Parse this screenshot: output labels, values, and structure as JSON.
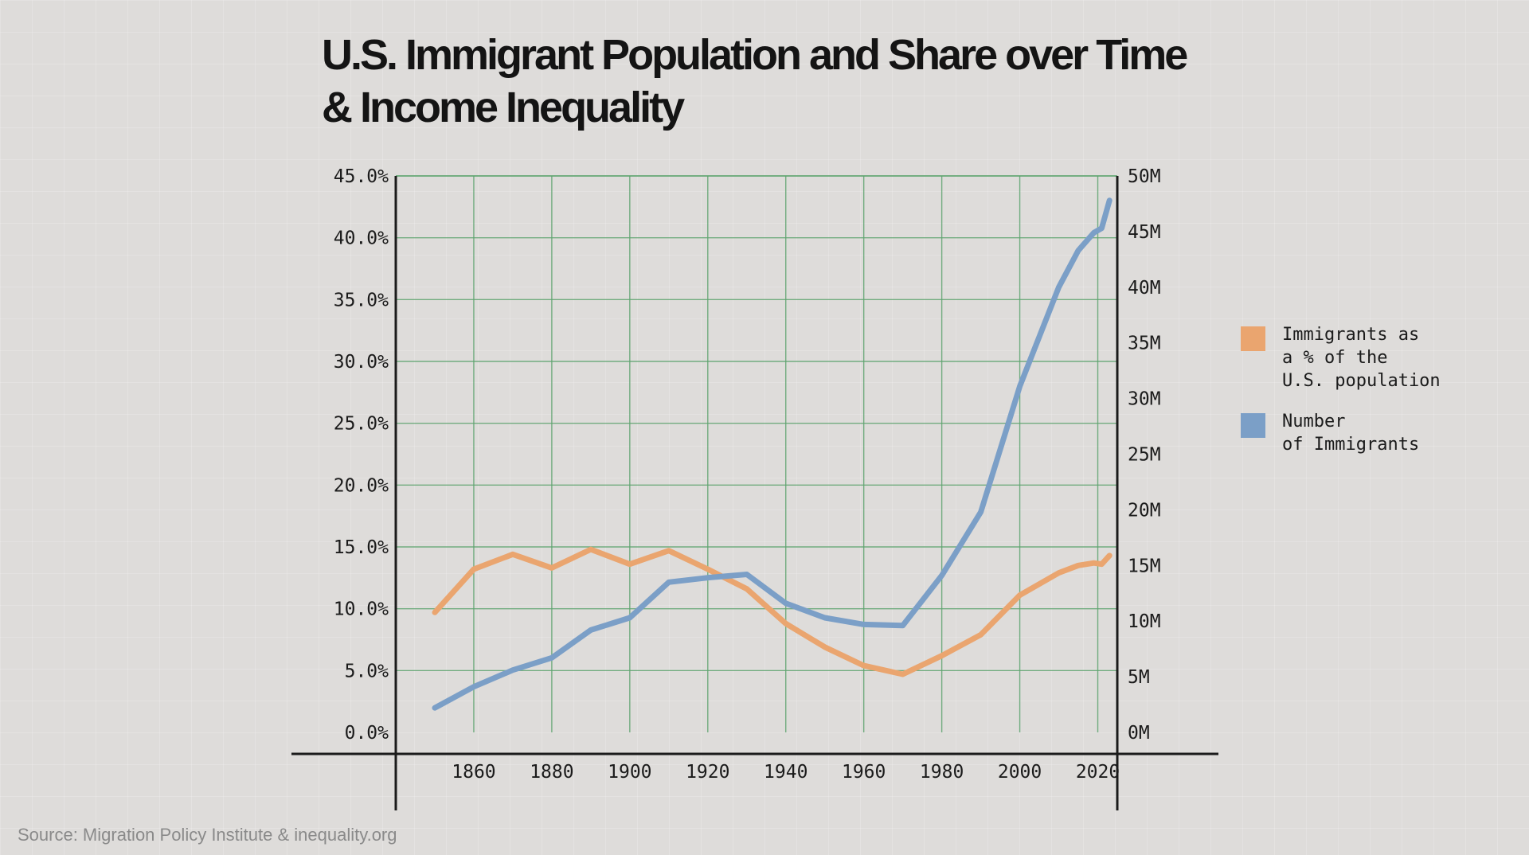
{
  "title_lines": [
    "U.S. Immigrant Population and Share over Time",
    "& Income Inequality"
  ],
  "source": "Source: Migration Policy Institute & inequality.org",
  "colors": {
    "share": "#eaa56f",
    "number": "#7b9fc7",
    "grid": "#5ea36f",
    "axis": "#1b1b1b"
  },
  "legend": [
    {
      "series": "share",
      "label": "Immigrants as\na % of the\nU.S. population"
    },
    {
      "series": "number",
      "label": "Number\nof Immigrants"
    }
  ],
  "chart_data": {
    "type": "line",
    "title": "U.S. Immigrant Population and Share over Time & Income Inequality",
    "x_ticks": [
      "1860",
      "1880",
      "1900",
      "1920",
      "1940",
      "1960",
      "1980",
      "2000",
      "2020"
    ],
    "x_range": [
      1840,
      2025
    ],
    "y_left_ticks": [
      "0.0%",
      "5.0%",
      "10.0%",
      "15.0%",
      "20.0%",
      "25.0%",
      "30.0%",
      "35.0%",
      "40.0%",
      "45.0%"
    ],
    "y_left_range": [
      0,
      45
    ],
    "y_right_ticks": [
      "0M",
      "5M",
      "10M",
      "15M",
      "20M",
      "25M",
      "30M",
      "35M",
      "40M",
      "45M",
      "50M"
    ],
    "y_right_range": [
      0,
      50
    ],
    "grid": true,
    "legend_position": "right",
    "series": [
      {
        "key": "share",
        "axis": "left",
        "x": [
          1850,
          1860,
          1870,
          1880,
          1890,
          1900,
          1910,
          1920,
          1930,
          1940,
          1950,
          1960,
          1970,
          1980,
          1990,
          2000,
          2010,
          2015,
          2019,
          2021,
          2023
        ],
        "values": [
          9.7,
          13.2,
          14.4,
          13.3,
          14.8,
          13.6,
          14.7,
          13.2,
          11.6,
          8.8,
          6.9,
          5.4,
          4.7,
          6.2,
          7.9,
          11.1,
          12.9,
          13.5,
          13.7,
          13.6,
          14.3
        ]
      },
      {
        "key": "number",
        "axis": "right",
        "x": [
          1850,
          1860,
          1870,
          1880,
          1890,
          1900,
          1910,
          1920,
          1930,
          1940,
          1950,
          1960,
          1970,
          1980,
          1990,
          2000,
          2010,
          2015,
          2019,
          2021,
          2023
        ],
        "values": [
          2.2,
          4.1,
          5.6,
          6.7,
          9.2,
          10.3,
          13.5,
          13.9,
          14.2,
          11.6,
          10.3,
          9.7,
          9.6,
          14.1,
          19.8,
          31.1,
          40.0,
          43.3,
          44.9,
          45.3,
          47.8
        ]
      }
    ]
  }
}
